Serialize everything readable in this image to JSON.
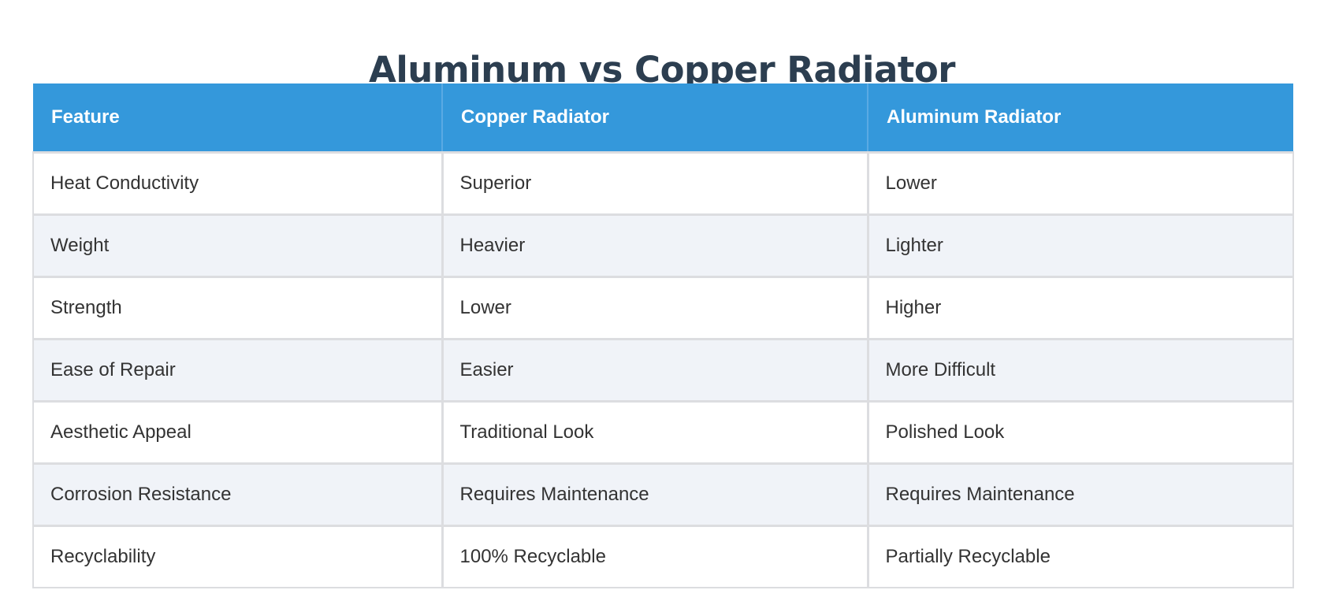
{
  "title": "Aluminum vs Copper Radiator",
  "table": {
    "headers": [
      "Feature",
      "Copper Radiator",
      "Aluminum Radiator"
    ],
    "rows": [
      [
        "Heat Conductivity",
        "Superior",
        "Lower"
      ],
      [
        "Weight",
        "Heavier",
        "Lighter"
      ],
      [
        "Strength",
        "Lower",
        "Higher"
      ],
      [
        "Ease of Repair",
        "Easier",
        "More Difficult"
      ],
      [
        "Aesthetic Appeal",
        "Traditional Look",
        "Polished Look"
      ],
      [
        "Corrosion Resistance",
        "Requires Maintenance",
        "Requires Maintenance"
      ],
      [
        "Recyclability",
        "100% Recyclable",
        "Partially Recyclable"
      ]
    ]
  },
  "colors": {
    "title": "#2c3e50",
    "header_background": "#3498db",
    "header_text": "#ffffff",
    "row_alt_background": "#f0f3f8",
    "border": "#dcdde0",
    "cell_text": "#333333"
  }
}
